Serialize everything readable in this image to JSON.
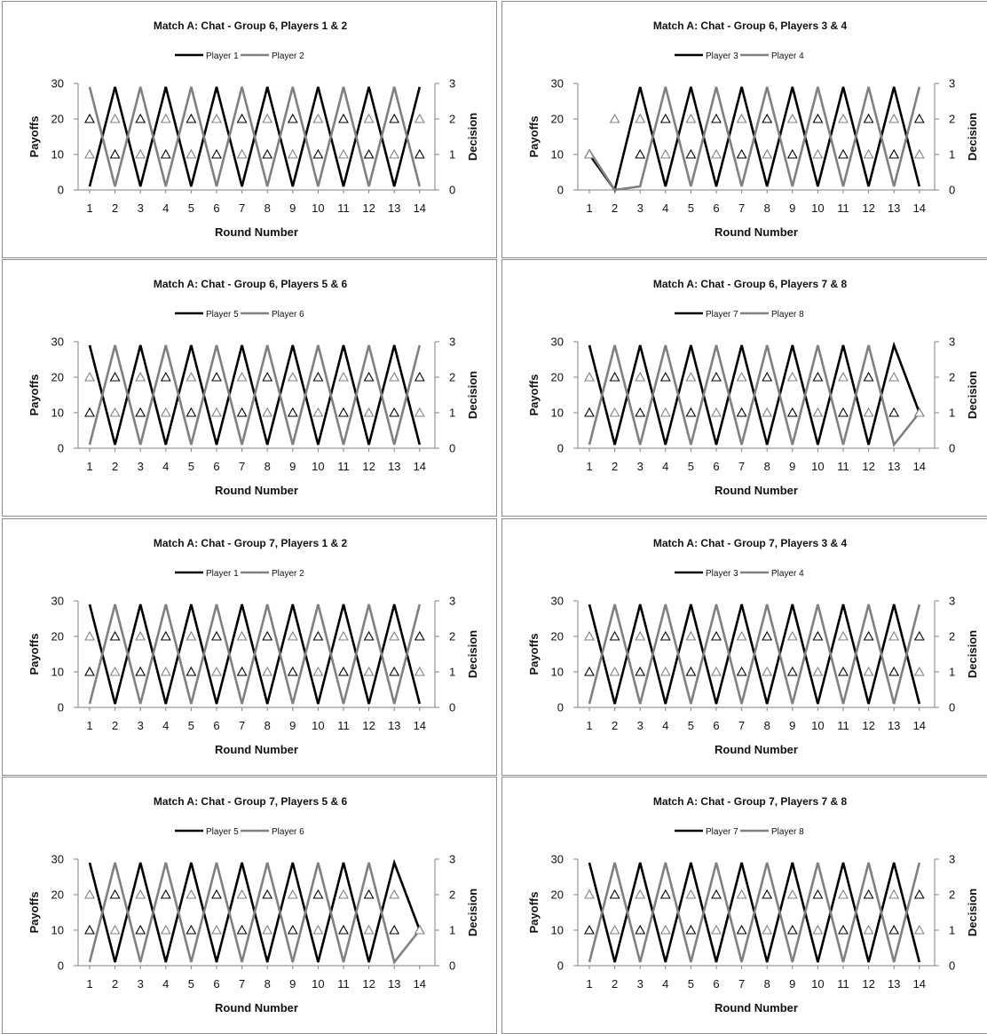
{
  "page": {
    "background": "#ffffff",
    "border_color": "#8c8c8c"
  },
  "colors": {
    "series_a": "#000000",
    "series_b": "#808080",
    "axis": "#808080"
  },
  "axes": {
    "xlabel": "Round Number",
    "ylabel_left": "Payoffs",
    "ylabel_right": "Decision",
    "x_ticks": [
      "1",
      "2",
      "3",
      "4",
      "5",
      "6",
      "7",
      "8",
      "9",
      "10",
      "11",
      "12",
      "13",
      "14"
    ],
    "y_left_ticks": [
      "0",
      "10",
      "20",
      "30"
    ],
    "y_right_ticks": [
      "0",
      "1",
      "2",
      "3"
    ]
  },
  "chart_data": [
    {
      "type": "line",
      "title": "Match A: Chat - Group 6, Players 1 & 2",
      "x": [
        1,
        2,
        3,
        4,
        5,
        6,
        7,
        8,
        9,
        10,
        11,
        12,
        13,
        14
      ],
      "ylim_left": [
        0,
        30
      ],
      "ylim_right": [
        0,
        3
      ],
      "legend": "top-center",
      "series": [
        {
          "name": "Player 1",
          "payoffs": [
            1,
            29,
            1,
            29,
            1,
            29,
            1,
            29,
            1,
            29,
            1,
            29,
            1,
            29
          ],
          "decisions": [
            2,
            1,
            2,
            1,
            2,
            1,
            2,
            1,
            2,
            1,
            2,
            1,
            2,
            1
          ]
        },
        {
          "name": "Player 2",
          "payoffs": [
            29,
            1,
            29,
            1,
            29,
            1,
            29,
            1,
            29,
            1,
            29,
            1,
            29,
            1
          ],
          "decisions": [
            1,
            2,
            1,
            2,
            1,
            2,
            1,
            2,
            1,
            2,
            1,
            2,
            1,
            2
          ]
        }
      ]
    },
    {
      "type": "line",
      "title": "Match A: Chat - Group 6, Players 3 & 4",
      "x": [
        1,
        2,
        3,
        4,
        5,
        6,
        7,
        8,
        9,
        10,
        11,
        12,
        13,
        14
      ],
      "ylim_left": [
        0,
        30
      ],
      "ylim_right": [
        0,
        3
      ],
      "legend": "top-center",
      "series": [
        {
          "name": "Player 3",
          "payoffs": [
            10,
            0,
            29,
            1,
            29,
            1,
            29,
            1,
            29,
            1,
            29,
            1,
            29,
            1
          ],
          "decisions": [
            1,
            null,
            1,
            2,
            1,
            2,
            1,
            2,
            1,
            2,
            1,
            2,
            1,
            2
          ]
        },
        {
          "name": "Player 4",
          "payoffs": [
            11,
            0,
            1,
            29,
            1,
            29,
            1,
            29,
            1,
            29,
            1,
            29,
            1,
            29
          ],
          "decisions": [
            1,
            2,
            2,
            1,
            2,
            1,
            2,
            1,
            2,
            1,
            2,
            1,
            2,
            1
          ]
        }
      ]
    },
    {
      "type": "line",
      "title": "Match A: Chat - Group 6, Players 5 & 6",
      "x": [
        1,
        2,
        3,
        4,
        5,
        6,
        7,
        8,
        9,
        10,
        11,
        12,
        13,
        14
      ],
      "ylim_left": [
        0,
        30
      ],
      "ylim_right": [
        0,
        3
      ],
      "legend": "top-center",
      "series": [
        {
          "name": "Player 5",
          "payoffs": [
            29,
            1,
            29,
            1,
            29,
            1,
            29,
            1,
            29,
            1,
            29,
            1,
            29,
            1
          ],
          "decisions": [
            1,
            2,
            1,
            2,
            1,
            2,
            1,
            2,
            1,
            2,
            1,
            2,
            1,
            2
          ]
        },
        {
          "name": "Player 6",
          "payoffs": [
            1,
            29,
            1,
            29,
            1,
            29,
            1,
            29,
            1,
            29,
            1,
            29,
            1,
            29
          ],
          "decisions": [
            2,
            1,
            2,
            1,
            2,
            1,
            2,
            1,
            2,
            1,
            2,
            1,
            2,
            1
          ]
        }
      ]
    },
    {
      "type": "line",
      "title": "Match A: Chat - Group 6, Players 7 & 8",
      "x": [
        1,
        2,
        3,
        4,
        5,
        6,
        7,
        8,
        9,
        10,
        11,
        12,
        13,
        14
      ],
      "ylim_left": [
        0,
        30
      ],
      "ylim_right": [
        0,
        3
      ],
      "legend": "top-center",
      "series": [
        {
          "name": "Player 7",
          "payoffs": [
            29,
            1,
            29,
            1,
            29,
            1,
            29,
            1,
            29,
            1,
            29,
            1,
            29,
            10
          ],
          "decisions": [
            1,
            2,
            1,
            2,
            1,
            2,
            1,
            2,
            1,
            2,
            1,
            2,
            1,
            1
          ]
        },
        {
          "name": "Player 8",
          "payoffs": [
            1,
            29,
            1,
            29,
            1,
            29,
            1,
            29,
            1,
            29,
            1,
            29,
            1,
            10
          ],
          "decisions": [
            2,
            1,
            2,
            1,
            2,
            1,
            2,
            1,
            2,
            1,
            2,
            1,
            2,
            1
          ]
        }
      ]
    },
    {
      "type": "line",
      "title": "Match A: Chat - Group 7, Players 1 & 2",
      "x": [
        1,
        2,
        3,
        4,
        5,
        6,
        7,
        8,
        9,
        10,
        11,
        12,
        13,
        14
      ],
      "ylim_left": [
        0,
        30
      ],
      "ylim_right": [
        0,
        3
      ],
      "legend": "top-center",
      "series": [
        {
          "name": "Player 1",
          "payoffs": [
            29,
            1,
            29,
            1,
            29,
            1,
            29,
            1,
            29,
            1,
            29,
            1,
            29,
            1
          ],
          "decisions": [
            1,
            2,
            1,
            2,
            1,
            2,
            1,
            2,
            1,
            2,
            1,
            2,
            1,
            2
          ]
        },
        {
          "name": "Player 2",
          "payoffs": [
            1,
            29,
            1,
            29,
            1,
            29,
            1,
            29,
            1,
            29,
            1,
            29,
            1,
            29
          ],
          "decisions": [
            2,
            1,
            2,
            1,
            2,
            1,
            2,
            1,
            2,
            1,
            2,
            1,
            2,
            1
          ]
        }
      ]
    },
    {
      "type": "line",
      "title": "Match A: Chat - Group 7, Players 3 & 4",
      "x": [
        1,
        2,
        3,
        4,
        5,
        6,
        7,
        8,
        9,
        10,
        11,
        12,
        13,
        14
      ],
      "ylim_left": [
        0,
        30
      ],
      "ylim_right": [
        0,
        3
      ],
      "legend": "top-center",
      "series": [
        {
          "name": "Player 3",
          "payoffs": [
            29,
            1,
            29,
            1,
            29,
            1,
            29,
            1,
            29,
            1,
            29,
            1,
            29,
            1
          ],
          "decisions": [
            1,
            2,
            1,
            2,
            1,
            2,
            1,
            2,
            1,
            2,
            1,
            2,
            1,
            2
          ]
        },
        {
          "name": "Player 4",
          "payoffs": [
            1,
            29,
            1,
            29,
            1,
            29,
            1,
            29,
            1,
            29,
            1,
            29,
            1,
            29
          ],
          "decisions": [
            2,
            1,
            2,
            1,
            2,
            1,
            2,
            1,
            2,
            1,
            2,
            1,
            2,
            1
          ]
        }
      ]
    },
    {
      "type": "line",
      "title": "Match A: Chat - Group 7, Players 5 & 6",
      "x": [
        1,
        2,
        3,
        4,
        5,
        6,
        7,
        8,
        9,
        10,
        11,
        12,
        13,
        14
      ],
      "ylim_left": [
        0,
        30
      ],
      "ylim_right": [
        0,
        3
      ],
      "legend": "top-center",
      "series": [
        {
          "name": "Player 5",
          "payoffs": [
            29,
            1,
            29,
            1,
            29,
            1,
            29,
            1,
            29,
            1,
            29,
            1,
            29,
            10
          ],
          "decisions": [
            1,
            2,
            1,
            2,
            1,
            2,
            1,
            2,
            1,
            2,
            1,
            2,
            1,
            1
          ]
        },
        {
          "name": "Player 6",
          "payoffs": [
            1,
            29,
            1,
            29,
            1,
            29,
            1,
            29,
            1,
            29,
            1,
            29,
            1,
            10
          ],
          "decisions": [
            2,
            1,
            2,
            1,
            2,
            1,
            2,
            1,
            2,
            1,
            2,
            1,
            2,
            1
          ]
        }
      ]
    },
    {
      "type": "line",
      "title": "Match A: Chat - Group 7, Players 7 & 8",
      "x": [
        1,
        2,
        3,
        4,
        5,
        6,
        7,
        8,
        9,
        10,
        11,
        12,
        13,
        14
      ],
      "ylim_left": [
        0,
        30
      ],
      "ylim_right": [
        0,
        3
      ],
      "legend": "top-center",
      "series": [
        {
          "name": "Player 7",
          "payoffs": [
            29,
            1,
            29,
            1,
            29,
            1,
            29,
            1,
            29,
            1,
            29,
            1,
            29,
            1
          ],
          "decisions": [
            1,
            2,
            1,
            2,
            1,
            2,
            1,
            2,
            1,
            2,
            1,
            2,
            1,
            2
          ]
        },
        {
          "name": "Player 8",
          "payoffs": [
            1,
            29,
            1,
            29,
            1,
            29,
            1,
            29,
            1,
            29,
            1,
            29,
            1,
            29
          ],
          "decisions": [
            2,
            1,
            2,
            1,
            2,
            1,
            2,
            1,
            2,
            1,
            2,
            1,
            2,
            1
          ]
        }
      ]
    }
  ]
}
